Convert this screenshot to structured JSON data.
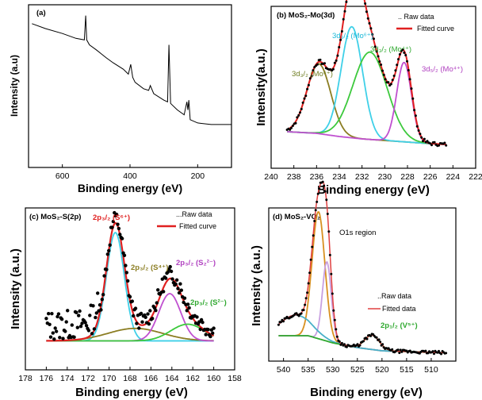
{
  "chart_data": [
    {
      "panel": "(a)",
      "type": "line",
      "title": "",
      "xlabel": "Binding energy (eV)",
      "ylabel": "Intensity (a.u)",
      "xlim": [
        700,
        100
      ],
      "xticks": [
        600,
        400,
        200
      ],
      "yticks_shown": false,
      "grid": false,
      "color": "#000000",
      "series": [
        {
          "name": "",
          "x": [
            690,
            650,
            600,
            560,
            535,
            531,
            528,
            520,
            500,
            470,
            450,
            420,
            405,
            398,
            392,
            385,
            360,
            345,
            340,
            330,
            300,
            289,
            285,
            280,
            260,
            240,
            232,
            229,
            226,
            222,
            200,
            160,
            120,
            100
          ],
          "y": [
            0.83,
            0.8,
            0.77,
            0.74,
            0.73,
            0.88,
            0.73,
            0.7,
            0.67,
            0.62,
            0.59,
            0.55,
            0.52,
            0.58,
            0.5,
            0.47,
            0.43,
            0.42,
            0.45,
            0.4,
            0.36,
            0.35,
            0.7,
            0.34,
            0.3,
            0.27,
            0.35,
            0.3,
            0.36,
            0.24,
            0.22,
            0.21,
            0.21,
            0.21
          ]
        }
      ]
    },
    {
      "panel": "(b)",
      "title": "MoS₂-Mo(3d)",
      "type": "line",
      "xlabel": "Binding energy (eV)",
      "ylabel": "Intensity(a.u.)",
      "xlim": [
        240,
        222
      ],
      "xticks": [
        240,
        238,
        236,
        234,
        232,
        230,
        228,
        226,
        224,
        222
      ],
      "yticks_shown": false,
      "grid": false,
      "legend": {
        "position": "top-right",
        "entries": [
          ".. Raw data",
          "Fitted curve"
        ]
      },
      "annotations": [
        {
          "text": "3d₃/₂ (Mo⁶⁺)",
          "color": "#6f7d22"
        },
        {
          "text": "3d₃/₂ (Mo⁶⁺)",
          "color": "#1ab8d8"
        },
        {
          "text": "3d₃/₂ (Mo⁴⁺)",
          "color": "#2fa82f"
        },
        {
          "text": "3d₅/₂ (Mo⁴⁺)",
          "color": "#b040c0"
        }
      ],
      "background": {
        "x": [
          238.5,
          236,
          234,
          232,
          230,
          228,
          226,
          224.5
        ],
        "y": [
          0.1,
          0.09,
          0.07,
          0.055,
          0.045,
          0.035,
          0.025,
          0.02
        ]
      },
      "components": [
        {
          "label": "Mo6+ 3d3/2 (olive)",
          "center": 235.8,
          "height": 0.44,
          "sigma": 1.05,
          "color": "#8b7d22"
        },
        {
          "label": "Mo6+ 3d3/2 (cyan)",
          "center": 232.9,
          "height": 0.7,
          "sigma": 0.95,
          "color": "#3fd0e8"
        },
        {
          "label": "Mo4+ 3d3/2 (green)",
          "center": 231.3,
          "height": 0.55,
          "sigma": 1.5,
          "color": "#3cc93c"
        },
        {
          "label": "Mo4+ 3d5/2 (purple)",
          "center": 228.3,
          "height": 0.5,
          "sigma": 0.65,
          "color": "#c050d0"
        }
      ],
      "fit_color": "#e02020",
      "raw_color": "#000000"
    },
    {
      "panel": "(c)",
      "title": "MoS₂-S(2p)",
      "type": "scatter",
      "xlabel": "Binding energy (eV)",
      "ylabel": "Intensity (a.u.)",
      "xlim": [
        178,
        158
      ],
      "xticks": [
        178,
        176,
        174,
        172,
        170,
        168,
        166,
        164,
        162,
        160,
        158
      ],
      "yticks_shown": false,
      "grid": false,
      "legend": {
        "position": "top-center",
        "entries": [
          "...Raw data",
          "Fitted curve"
        ]
      },
      "annotations": [
        {
          "text": "2p₃/₂ (S⁶⁺)",
          "color": "#e02020"
        },
        {
          "text": "2p₃/₂ (S⁴⁺)",
          "color": "#8b7d22"
        },
        {
          "text": "2p₃/₂ (S₂²⁻)",
          "color": "#b040c0"
        },
        {
          "text": "2p₃/₂ (S²⁻)",
          "color": "#2fa82f"
        }
      ],
      "baseline": 0.1,
      "components": [
        {
          "label": "S6+",
          "center": 169.4,
          "height": 0.78,
          "sigma": 0.85,
          "color": "#3fd0e8"
        },
        {
          "label": "S4+",
          "center": 167.5,
          "height": 0.09,
          "sigma": 2.6,
          "color": "#8b7d22"
        },
        {
          "label": "S2 2-",
          "center": 164.2,
          "height": 0.34,
          "sigma": 1.05,
          "color": "#c050d0"
        },
        {
          "label": "S2-",
          "center": 162.5,
          "height": 0.12,
          "sigma": 1.6,
          "color": "#3cc93c"
        }
      ],
      "fit_color": "#e02020",
      "raw_color": "#000000"
    },
    {
      "panel": "(d)",
      "title": "MoS₂-VO₂",
      "type": "line",
      "xlabel": "Binding energy (eV)",
      "ylabel": "Intensity (a.u.)",
      "xlim": [
        543,
        505
      ],
      "xticks": [
        540,
        535,
        530,
        525,
        520,
        515,
        510
      ],
      "yticks_shown": false,
      "grid": false,
      "legend": {
        "position": "center-right",
        "entries": [
          "..Raw data",
          "Fitted data"
        ]
      },
      "annotations": [
        {
          "text": "O1s region",
          "color": "#000000"
        },
        {
          "text": "2p₁/₂ (V⁵⁺)",
          "color": "#2fa82f"
        }
      ],
      "components": [
        {
          "label": "O1s low",
          "center": 532.9,
          "height": 0.8,
          "sigma": 1.3,
          "color": "#d89020"
        },
        {
          "label": "O1s high",
          "center": 531.2,
          "height": 0.5,
          "sigma": 0.9,
          "color": "#c8a0e0"
        },
        {
          "label": "broad",
          "center": 537.5,
          "height": 0.13,
          "sigma": 3.2,
          "color": "#48b0c8"
        },
        {
          "label": "V5+ 2p1/2",
          "center": 522.0,
          "height": 0.09,
          "sigma": 1.5,
          "color": "#2fa82f"
        }
      ],
      "background": {
        "x": [
          541,
          535,
          530,
          525,
          520,
          515,
          510,
          507
        ],
        "y": [
          0.12,
          0.12,
          0.075,
          0.045,
          0.025,
          0.02,
          0.015,
          0.012
        ]
      },
      "fit_color": "#e04040",
      "raw_color": "#000000"
    }
  ]
}
